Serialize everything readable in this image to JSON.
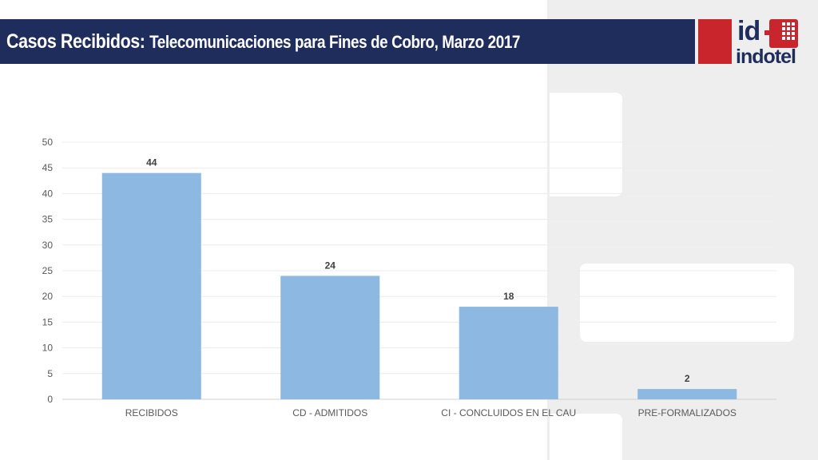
{
  "header": {
    "title_main": "Casos Recibidos:",
    "title_sub": "Telecomunicaciones para Fines de Cobro, Marzo 2017"
  },
  "logo": {
    "id_text": "id",
    "name_text": "indotel",
    "brand_color": "#c8262c",
    "navy_color": "#1f2d5c"
  },
  "chart_data": {
    "type": "bar",
    "categories": [
      "RECIBIDOS",
      "CD - ADMITIDOS",
      "CI - CONCLUIDOS EN EL CAU",
      "PRE-FORMALIZADOS"
    ],
    "values": [
      44,
      24,
      18,
      2
    ],
    "title": "",
    "xlabel": "",
    "ylabel": "",
    "ylim": [
      0,
      50
    ],
    "yticks": [
      0,
      5,
      10,
      15,
      20,
      25,
      30,
      35,
      40,
      45,
      50
    ],
    "grid": true,
    "legend": "none",
    "bar_color": "#8db8e2",
    "data_labels": [
      "44",
      "24",
      "18",
      "2"
    ]
  }
}
